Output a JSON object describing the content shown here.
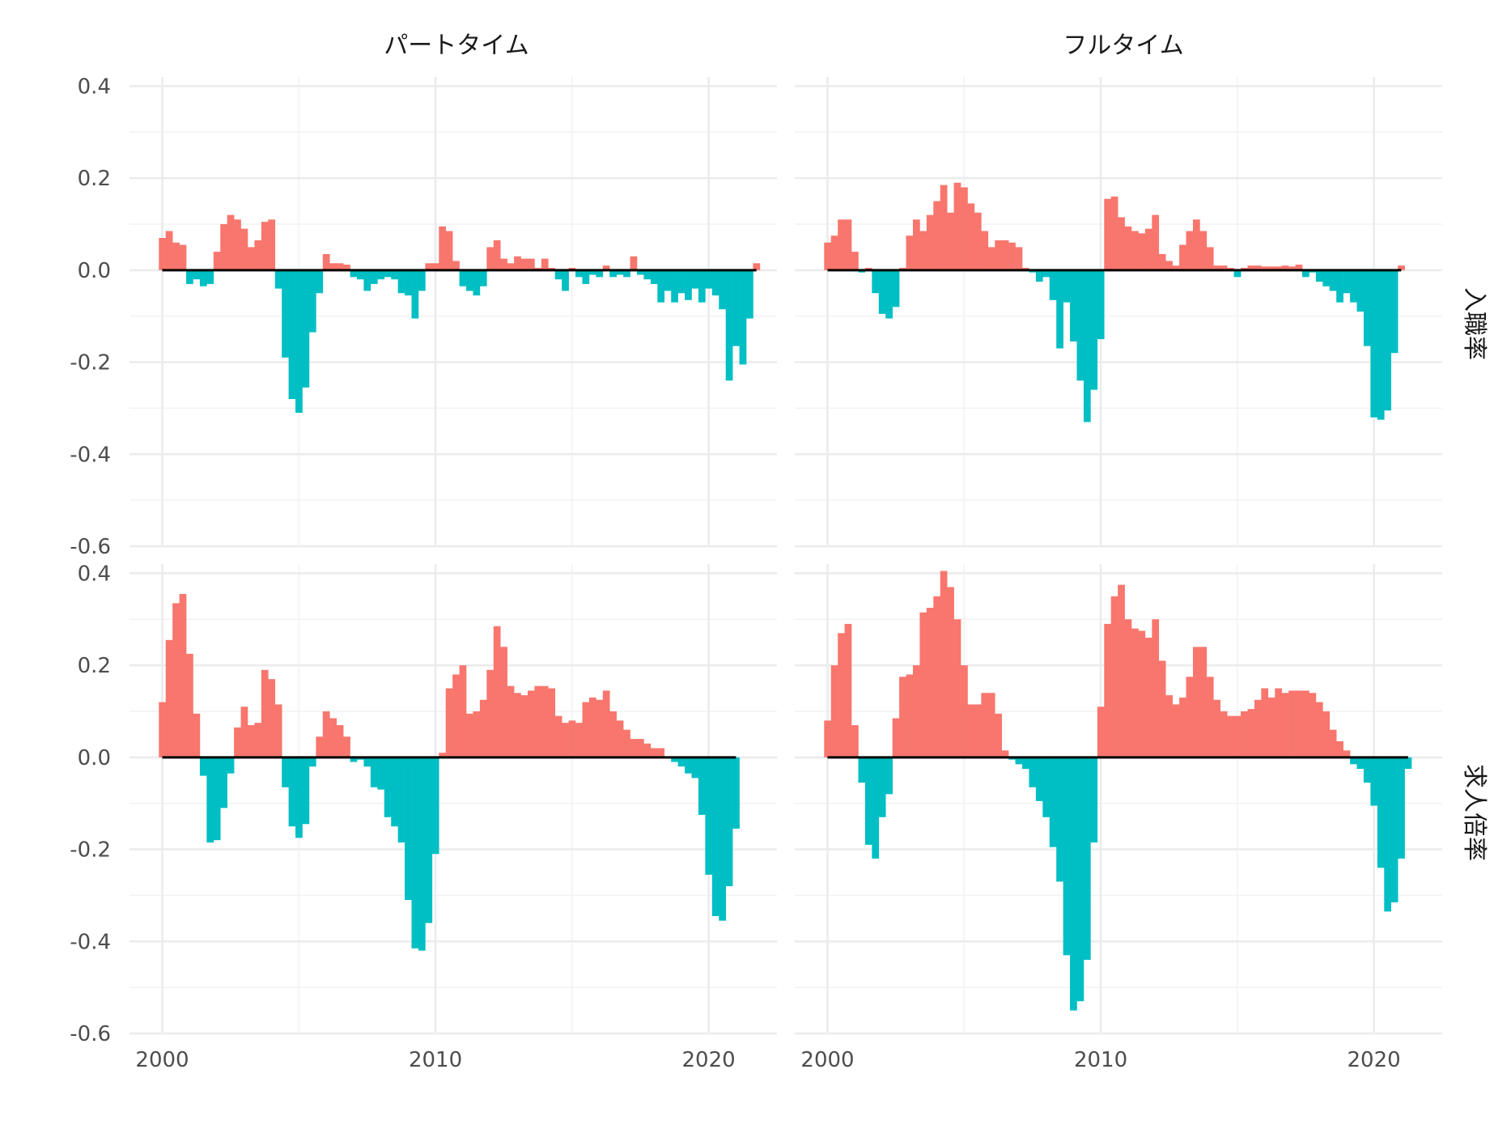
{
  "chart_data": {
    "type": "bar",
    "x_ticks": [
      2000,
      2010,
      2020
    ],
    "y_ticks": [
      0.4,
      0.2,
      0.0,
      -0.2,
      -0.4,
      -0.6
    ],
    "y_tick_labels": [
      "0.4",
      "0.2",
      "0.0",
      "-0.2",
      "-0.4",
      "-0.6"
    ],
    "ylim": [
      -0.6,
      0.42
    ],
    "xlim": [
      1998.8,
      2022.5
    ],
    "column_labels": [
      "パートタイム",
      "フルタイム"
    ],
    "row_labels": [
      "入職率",
      "求人倍率"
    ],
    "positive_color": "#F8766D",
    "negative_color": "#00BFC4",
    "grid": true,
    "start_year": 2000,
    "step": 0.25,
    "panels": [
      {
        "column": "パートタイム",
        "row": "入職率",
        "values": [
          0.07,
          0.085,
          0.06,
          0.055,
          -0.03,
          -0.02,
          -0.035,
          -0.03,
          0.04,
          0.1,
          0.12,
          0.11,
          0.09,
          0.05,
          0.065,
          0.105,
          0.11,
          -0.04,
          -0.19,
          -0.28,
          -0.31,
          -0.255,
          -0.135,
          -0.05,
          0.035,
          0.015,
          0.015,
          0.012,
          -0.015,
          -0.02,
          -0.045,
          -0.03,
          -0.02,
          -0.015,
          -0.02,
          -0.05,
          -0.055,
          -0.105,
          -0.045,
          0.015,
          0.015,
          0.095,
          0.085,
          0.02,
          -0.035,
          -0.045,
          -0.055,
          -0.035,
          0.05,
          0.065,
          0.025,
          0.015,
          0.03,
          0.025,
          0.025,
          0.005,
          0.025,
          0.005,
          -0.02,
          -0.045,
          0.005,
          -0.015,
          -0.03,
          -0.01,
          -0.015,
          0.01,
          -0.015,
          -0.01,
          -0.015,
          0.03,
          -0.01,
          -0.02,
          -0.03,
          -0.07,
          -0.045,
          -0.07,
          -0.05,
          -0.065,
          -0.04,
          -0.07,
          -0.04,
          -0.055,
          -0.085,
          -0.24,
          -0.165,
          -0.205,
          -0.105,
          0.015
        ]
      },
      {
        "column": "フルタイム",
        "row": "入職率",
        "values": [
          0.06,
          0.075,
          0.11,
          0.11,
          0.04,
          -0.005,
          0.005,
          -0.05,
          -0.095,
          -0.105,
          -0.08,
          0.005,
          0.075,
          0.11,
          0.085,
          0.12,
          0.15,
          0.185,
          0.125,
          0.19,
          0.18,
          0.145,
          0.125,
          0.085,
          0.05,
          0.065,
          0.065,
          0.06,
          0.05,
          0.005,
          -0.005,
          -0.025,
          -0.015,
          -0.065,
          -0.17,
          -0.07,
          -0.155,
          -0.24,
          -0.33,
          -0.26,
          -0.15,
          0.155,
          0.16,
          0.115,
          0.095,
          0.085,
          0.08,
          0.09,
          0.12,
          0.035,
          0.02,
          0.01,
          0.055,
          0.085,
          0.11,
          0.085,
          0.05,
          0.01,
          0.01,
          0.005,
          -0.015,
          0.005,
          0.01,
          0.01,
          0.008,
          0.008,
          0.008,
          0.01,
          0.008,
          0.012,
          -0.015,
          -0.005,
          -0.025,
          -0.035,
          -0.045,
          -0.07,
          -0.05,
          -0.07,
          -0.09,
          -0.165,
          -0.32,
          -0.325,
          -0.305,
          -0.18,
          0.01
        ]
      },
      {
        "column": "パートタイム",
        "row": "求人倍率",
        "values": [
          0.12,
          0.255,
          0.335,
          0.355,
          0.225,
          0.095,
          -0.04,
          -0.185,
          -0.18,
          -0.11,
          -0.035,
          0.065,
          0.11,
          0.07,
          0.075,
          0.19,
          0.17,
          0.115,
          -0.065,
          -0.15,
          -0.175,
          -0.145,
          -0.02,
          0.045,
          0.1,
          0.085,
          0.07,
          0.045,
          -0.01,
          -0.005,
          -0.02,
          -0.065,
          -0.07,
          -0.13,
          -0.15,
          -0.185,
          -0.31,
          -0.415,
          -0.42,
          -0.36,
          -0.21,
          0.01,
          0.15,
          0.18,
          0.2,
          0.095,
          0.1,
          0.125,
          0.19,
          0.285,
          0.24,
          0.155,
          0.14,
          0.135,
          0.145,
          0.155,
          0.155,
          0.15,
          0.09,
          0.075,
          0.08,
          0.075,
          0.12,
          0.13,
          0.125,
          0.145,
          0.1,
          0.08,
          0.06,
          0.04,
          0.04,
          0.03,
          0.02,
          0.02,
          0.001,
          -0.01,
          -0.02,
          -0.035,
          -0.045,
          -0.125,
          -0.255,
          -0.345,
          -0.355,
          -0.28,
          -0.155
        ]
      },
      {
        "column": "フルタイム",
        "row": "求人倍率",
        "values": [
          0.08,
          0.2,
          0.27,
          0.29,
          0.07,
          -0.055,
          -0.19,
          -0.22,
          -0.13,
          -0.08,
          0.085,
          0.175,
          0.18,
          0.2,
          0.315,
          0.325,
          0.35,
          0.405,
          0.37,
          0.3,
          0.2,
          0.115,
          0.115,
          0.14,
          0.14,
          0.095,
          0.015,
          -0.005,
          -0.015,
          -0.025,
          -0.065,
          -0.095,
          -0.13,
          -0.195,
          -0.27,
          -0.43,
          -0.55,
          -0.53,
          -0.44,
          -0.185,
          0.11,
          0.29,
          0.35,
          0.375,
          0.3,
          0.28,
          0.275,
          0.26,
          0.3,
          0.21,
          0.135,
          0.115,
          0.13,
          0.175,
          0.24,
          0.24,
          0.175,
          0.125,
          0.1,
          0.09,
          0.09,
          0.1,
          0.105,
          0.125,
          0.15,
          0.13,
          0.15,
          0.14,
          0.145,
          0.145,
          0.145,
          0.14,
          0.12,
          0.1,
          0.06,
          0.035,
          0.015,
          -0.015,
          -0.025,
          -0.055,
          -0.105,
          -0.24,
          -0.335,
          -0.315,
          -0.22,
          -0.025
        ]
      }
    ]
  }
}
